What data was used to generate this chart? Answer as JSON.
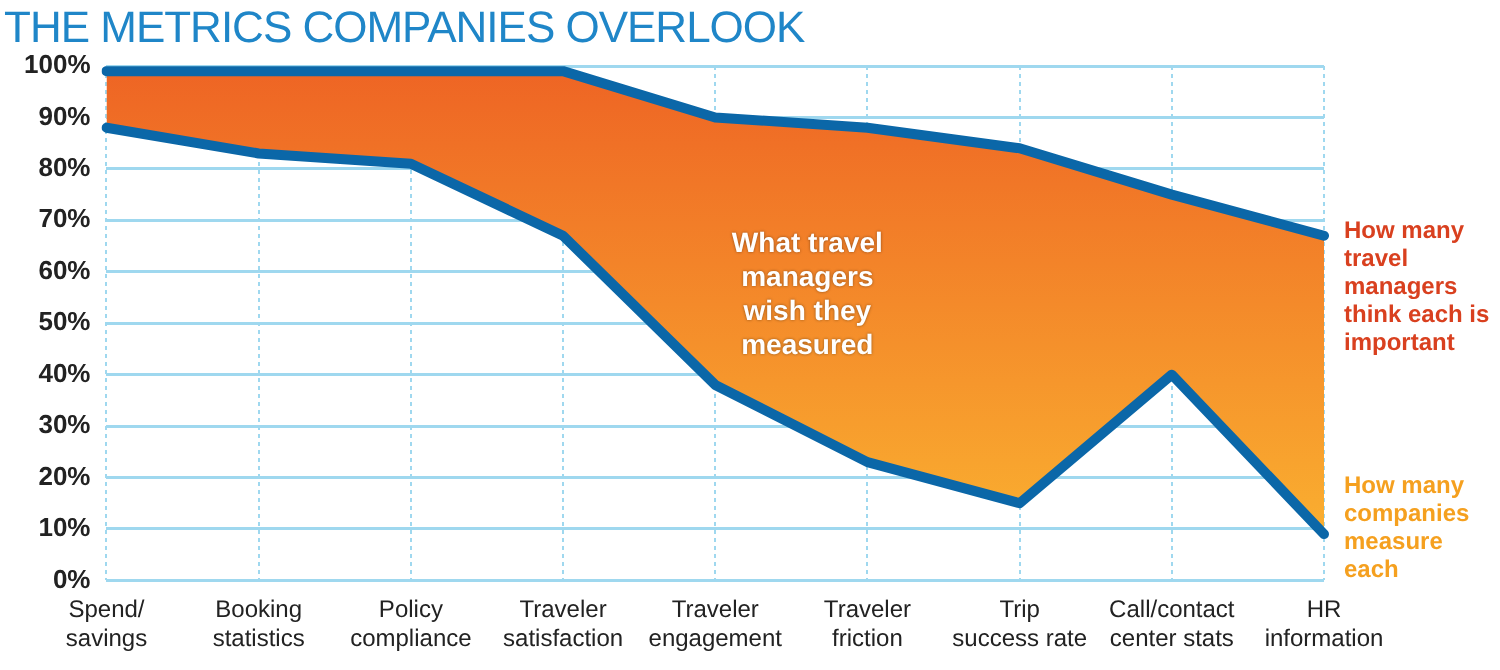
{
  "chart_data": {
    "type": "line",
    "title": "THE METRICS COMPANIES OVERLOOK",
    "categories": [
      "Spend/ savings",
      "Booking statistics",
      "Policy compliance",
      "Traveler satisfaction",
      "Traveler engagement",
      "Traveler friction",
      "Trip success rate",
      "Call/contact center stats",
      "HR information"
    ],
    "series": [
      {
        "name": "How many companies measure each",
        "color": "#0b67a8",
        "values": [
          88,
          83,
          81,
          67,
          38,
          23,
          15,
          40,
          9
        ]
      },
      {
        "name": "How many travel managers think each is important",
        "type": "area",
        "color": "#0b67a8",
        "values": [
          99,
          99,
          99,
          99,
          90,
          88,
          84,
          75,
          67
        ]
      }
    ],
    "annotations": [
      "What travel managers wish they measured"
    ],
    "ylim": [
      0,
      100
    ],
    "yticks": [
      {
        "value": 0,
        "label": "0%"
      },
      {
        "value": 10,
        "label": "10%"
      },
      {
        "value": 20,
        "label": "20%"
      },
      {
        "value": 30,
        "label": "30%"
      },
      {
        "value": 40,
        "label": "40%"
      },
      {
        "value": 50,
        "label": "50%"
      },
      {
        "value": 60,
        "label": "60%"
      },
      {
        "value": 70,
        "label": "70%"
      },
      {
        "value": 80,
        "label": "80%"
      },
      {
        "value": 90,
        "label": "90%"
      },
      {
        "value": 100,
        "label": "100%"
      }
    ],
    "grid": true,
    "legend": false,
    "marker": "none",
    "line_style": "solid"
  }
}
